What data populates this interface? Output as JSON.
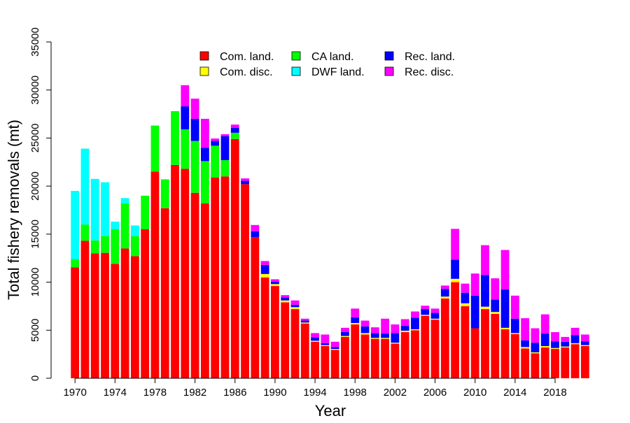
{
  "chart_data": {
    "type": "bar",
    "stacked": true,
    "title": "",
    "xlabel": "Year",
    "ylabel": "Total fishery removals (mt)",
    "ylim": [
      0,
      35000
    ],
    "yticks": [
      0,
      5000,
      10000,
      15000,
      20000,
      25000,
      30000,
      35000
    ],
    "xticks": [
      1970,
      1974,
      1978,
      1982,
      1986,
      1990,
      1994,
      1998,
      2002,
      2006,
      2010,
      2014,
      2018
    ],
    "grid": false,
    "legend_position": "top-center",
    "categories": [
      1970,
      1971,
      1972,
      1973,
      1974,
      1975,
      1976,
      1977,
      1978,
      1979,
      1980,
      1981,
      1982,
      1983,
      1984,
      1985,
      1986,
      1987,
      1988,
      1989,
      1990,
      1991,
      1992,
      1993,
      1994,
      1995,
      1996,
      1997,
      1998,
      1999,
      2000,
      2001,
      2002,
      2003,
      2004,
      2005,
      2006,
      2007,
      2008,
      2009,
      2010,
      2011,
      2012,
      2013,
      2014,
      2015,
      2016,
      2017,
      2018,
      2019,
      2020,
      2021
    ],
    "series": [
      {
        "name": "Com. land.",
        "color": "#ff0000",
        "values": [
          11550,
          14300,
          13000,
          13050,
          11900,
          13500,
          12700,
          15500,
          21500,
          17700,
          22200,
          21800,
          19300,
          18200,
          20900,
          21000,
          24900,
          20200,
          14700,
          10500,
          9600,
          7900,
          7200,
          5700,
          3800,
          3350,
          2950,
          4300,
          5600,
          4550,
          4100,
          4100,
          3600,
          4800,
          5000,
          6500,
          6100,
          8300,
          10000,
          7500,
          5200,
          7200,
          6700,
          5100,
          4600,
          3100,
          2600,
          3200,
          3050,
          3200,
          3550,
          3350
        ]
      },
      {
        "name": "Com. disc.",
        "color": "#ffff00",
        "values": [
          0,
          0,
          0,
          0,
          0,
          0,
          0,
          0,
          0,
          0,
          0,
          0,
          0,
          0,
          0,
          0,
          0,
          0,
          0,
          350,
          200,
          200,
          200,
          100,
          100,
          100,
          100,
          100,
          150,
          150,
          100,
          100,
          100,
          150,
          100,
          100,
          100,
          200,
          350,
          300,
          0,
          250,
          200,
          150,
          100,
          150,
          100,
          150,
          100,
          100,
          100,
          100
        ]
      },
      {
        "name": "CA land.",
        "color": "#00ff00",
        "values": [
          850,
          1700,
          1350,
          1750,
          3600,
          4700,
          2100,
          3500,
          4800,
          3000,
          5600,
          4100,
          5400,
          4400,
          3300,
          1700,
          650,
          0,
          0,
          0,
          0,
          0,
          0,
          0,
          0,
          0,
          0,
          0,
          0,
          0,
          0,
          0,
          0,
          0,
          0,
          0,
          0,
          0,
          0,
          0,
          0,
          0,
          0,
          0,
          0,
          0,
          0,
          0,
          0,
          0,
          0,
          0
        ]
      },
      {
        "name": "DWF land.",
        "color": "#00ffff",
        "values": [
          7100,
          7900,
          6400,
          5600,
          800,
          550,
          1100,
          0,
          0,
          0,
          0,
          0,
          0,
          0,
          0,
          0,
          0,
          0,
          0,
          0,
          0,
          0,
          0,
          0,
          0,
          0,
          0,
          0,
          0,
          0,
          0,
          0,
          0,
          0,
          0,
          0,
          0,
          0,
          0,
          0,
          0,
          0,
          0,
          0,
          0,
          0,
          0,
          0,
          0,
          0,
          0,
          0
        ]
      },
      {
        "name": "Rec. land.",
        "color": "#0000ff",
        "values": [
          0,
          0,
          0,
          0,
          0,
          0,
          0,
          0,
          0,
          0,
          0,
          2400,
          2300,
          1400,
          500,
          2500,
          500,
          350,
          600,
          950,
          250,
          300,
          250,
          200,
          350,
          200,
          200,
          400,
          600,
          700,
          500,
          450,
          1000,
          500,
          1200,
          600,
          600,
          800,
          2000,
          1100,
          3400,
          3300,
          1300,
          4000,
          1500,
          700,
          1000,
          1300,
          700,
          500,
          850,
          400
        ]
      },
      {
        "name": "Rec. disc.",
        "color": "#ff00ff",
        "values": [
          0,
          0,
          0,
          0,
          0,
          0,
          0,
          0,
          0,
          0,
          0,
          2200,
          2100,
          3000,
          250,
          200,
          350,
          250,
          650,
          400,
          250,
          250,
          450,
          200,
          450,
          900,
          550,
          450,
          900,
          600,
          600,
          1550,
          900,
          700,
          650,
          350,
          450,
          350,
          3200,
          950,
          2300,
          3100,
          2200,
          4100,
          2400,
          2300,
          1500,
          2000,
          950,
          500,
          750,
          700
        ]
      }
    ]
  }
}
